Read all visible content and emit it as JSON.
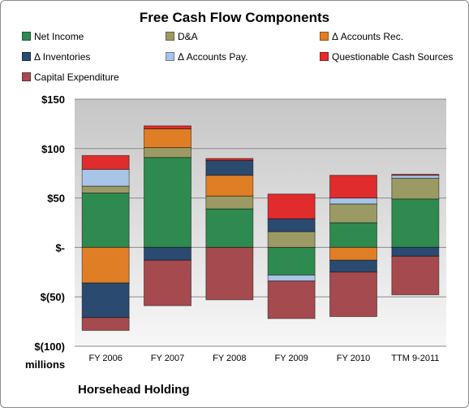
{
  "chart_data": {
    "type": "bar",
    "stacked": true,
    "title": "Free Cash Flow Components",
    "footer": "Horsehead Holding",
    "units_label": "millions",
    "categories": [
      "FY 2006",
      "FY 2007",
      "FY 2008",
      "FY 2009",
      "FY 2010",
      "TTM 9-2011"
    ],
    "y_tick_labels": [
      "$150",
      "$100",
      "$50",
      "$-",
      "$(50)",
      "$(100)"
    ],
    "y_tick_values": [
      150,
      100,
      50,
      0,
      -50,
      -100
    ],
    "ylim": [
      -100,
      150
    ],
    "grid": true,
    "legend_position": "top",
    "series": [
      {
        "name": "Net Income",
        "color": "#2e8a4f",
        "values": [
          55,
          91,
          39,
          -28,
          25,
          49
        ]
      },
      {
        "name": "D&A",
        "color": "#9c9a64",
        "values": [
          7,
          10,
          13,
          16,
          19,
          21
        ]
      },
      {
        "name": "Δ Accounts Rec.",
        "color": "#e07e26",
        "values": [
          -36,
          19,
          21,
          0,
          -13,
          0
        ]
      },
      {
        "name": "Δ Inventories",
        "color": "#2a4a70",
        "values": [
          -35,
          -13,
          15,
          13,
          -12,
          -9
        ]
      },
      {
        "name": "Δ Accounts Pay.",
        "color": "#a8c4e6",
        "values": [
          17,
          0,
          0,
          -6,
          6,
          3
        ]
      },
      {
        "name": "Questionable Cash Sources",
        "color": "#e02c2c",
        "values": [
          14,
          3,
          2,
          25,
          23,
          1
        ]
      },
      {
        "name": "Capital Expenditure",
        "color": "#a54a4e",
        "values": [
          -13,
          -46,
          -53,
          -38,
          -45,
          -39
        ]
      }
    ]
  }
}
